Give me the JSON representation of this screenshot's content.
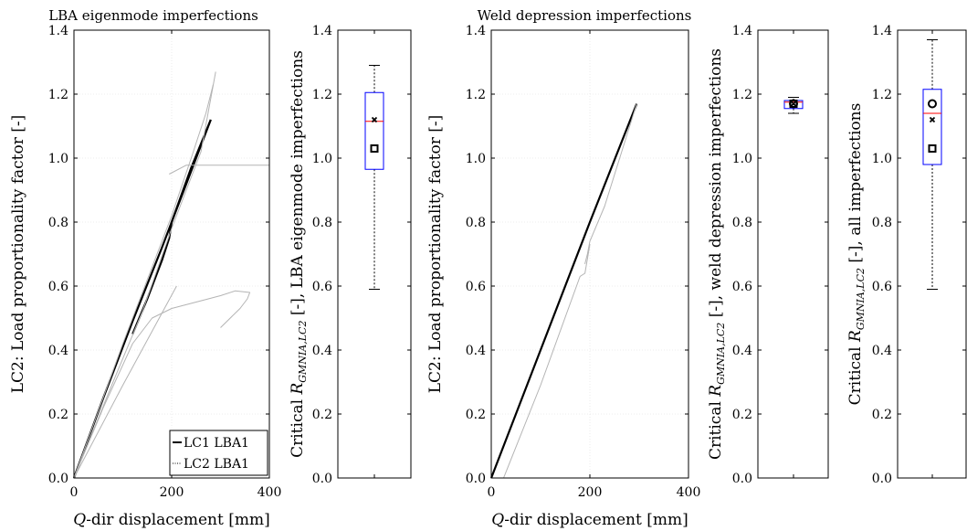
{
  "chart_data": [
    {
      "type": "line",
      "title": "LBA eigenmode imperfections",
      "xlabel": "Q-dir displacement [mm]",
      "ylabel": "LC2: Load proportionality factor [-]",
      "xlim": [
        0,
        400
      ],
      "ylim": [
        0,
        1.4
      ],
      "xticks": [
        "0",
        "200",
        "400"
      ],
      "yticks": [
        "0.0",
        "0.2",
        "0.4",
        "0.6",
        "0.8",
        "1.0",
        "1.2",
        "1.4"
      ],
      "grid": true,
      "legend_position": "bottom-right",
      "series": [
        {
          "name": "LC1 LBA1",
          "style": "solid",
          "color": "#000000",
          "x": [
            0,
            60,
            120,
            180,
            200,
            230,
            260,
            280
          ],
          "y": [
            0,
            0.25,
            0.49,
            0.72,
            0.8,
            0.92,
            1.04,
            1.12
          ]
        },
        {
          "name": "",
          "style": "solid",
          "color": "#000000",
          "x": [
            120,
            150,
            180,
            195,
            200,
            240,
            280
          ],
          "y": [
            0.45,
            0.56,
            0.68,
            0.75,
            0.8,
            0.97,
            1.12
          ]
        },
        {
          "name": "LC2 LBA1",
          "style": "solid",
          "color": "#b4b4b4",
          "x": [
            0,
            50,
            100,
            150,
            200,
            240,
            270,
            285
          ],
          "y": [
            0,
            0.21,
            0.42,
            0.62,
            0.82,
            1.0,
            1.14,
            1.23
          ]
        },
        {
          "name": "",
          "style": "solid",
          "color": "#b4b4b4",
          "x": [
            0,
            80,
            140,
            200,
            260,
            290
          ],
          "y": [
            0,
            0.3,
            0.52,
            0.78,
            1.02,
            1.27
          ]
        },
        {
          "name": "",
          "style": "solid",
          "color": "#b4b4b4",
          "x": [
            0,
            60,
            120,
            160,
            200,
            250,
            300,
            330,
            360,
            355,
            340,
            300
          ],
          "y": [
            0,
            0.22,
            0.42,
            0.5,
            0.53,
            0.55,
            0.57,
            0.585,
            0.58,
            0.56,
            0.53,
            0.47
          ]
        },
        {
          "name": "",
          "style": "solid",
          "color": "#b4b4b4",
          "x": [
            0,
            100,
            210
          ],
          "y": [
            0,
            0.29,
            0.6
          ]
        },
        {
          "name": "",
          "style": "solid",
          "color": "#b4b4b4",
          "x": [
            195,
            230,
            260,
            300,
            400
          ],
          "y": [
            0.95,
            0.978,
            0.978,
            0.978,
            0.978
          ]
        }
      ]
    },
    {
      "type": "box",
      "ylabel": "Critical R_GMNIA,LC2 [-], LBA eigenmode imperfections",
      "ylim": [
        0,
        1.4
      ],
      "yticks": [
        "0.0",
        "0.2",
        "0.4",
        "0.6",
        "0.8",
        "1.0",
        "1.2",
        "1.4"
      ],
      "min": 0.59,
      "q1": 0.965,
      "median": 1.115,
      "q3": 1.205,
      "max": 1.29,
      "mean": 1.12,
      "square": 1.03,
      "circle": null
    },
    {
      "type": "line",
      "title": "Weld depression imperfections",
      "xlabel": "Q-dir displacement [mm]",
      "ylabel": "LC2: Load proportionality factor [-]",
      "xlim": [
        0,
        400
      ],
      "ylim": [
        0,
        1.4
      ],
      "xticks": [
        "0",
        "200",
        "400"
      ],
      "yticks": [
        "0.0",
        "0.2",
        "0.4",
        "0.6",
        "0.8",
        "1.0",
        "1.2",
        "1.4"
      ],
      "grid": true,
      "series": [
        {
          "name": "",
          "style": "solid",
          "color": "#000000",
          "x": [
            0,
            100,
            200,
            295
          ],
          "y": [
            0,
            0.4,
            0.8,
            1.17
          ]
        },
        {
          "name": "",
          "style": "solid",
          "color": "#b4b4b4",
          "x": [
            0,
            0,
            0
          ],
          "y": [
            0.15,
            0.6,
            1.18
          ]
        },
        {
          "name": "",
          "style": "solid",
          "color": "#b4b4b4",
          "x": [
            25,
            100,
            180,
            190,
            200,
            195,
            190,
            195,
            200,
            230,
            295
          ],
          "y": [
            0,
            0.29,
            0.63,
            0.64,
            0.73,
            0.7,
            0.67,
            0.7,
            0.74,
            0.85,
            1.17
          ]
        }
      ]
    },
    {
      "type": "box",
      "ylabel": "Critical R_GMNIA,LC2 [-], weld depression imperfections",
      "ylim": [
        0,
        1.4
      ],
      "yticks": [
        "0.0",
        "0.2",
        "0.4",
        "0.6",
        "0.8",
        "1.0",
        "1.2",
        "1.4"
      ],
      "min": 1.14,
      "q1": 1.155,
      "median": 1.175,
      "q3": 1.18,
      "max": 1.19,
      "mean": 1.17,
      "square": 1.17,
      "circle": 1.17
    },
    {
      "type": "box",
      "ylabel": "Critical R_GMNIA,LC2 [-], all imperfections",
      "ylim": [
        0,
        1.4
      ],
      "yticks": [
        "0.0",
        "0.2",
        "0.4",
        "0.6",
        "0.8",
        "1.0",
        "1.2",
        "1.4"
      ],
      "min": 0.59,
      "q1": 0.98,
      "median": 1.14,
      "q3": 1.215,
      "max": 1.37,
      "mean": 1.12,
      "square": 1.03,
      "circle": 1.17
    }
  ],
  "colors": {
    "box": "#0000ff",
    "median": "#ff0000",
    "grey_curve": "#b4b4b4",
    "black_curve": "#000000"
  }
}
